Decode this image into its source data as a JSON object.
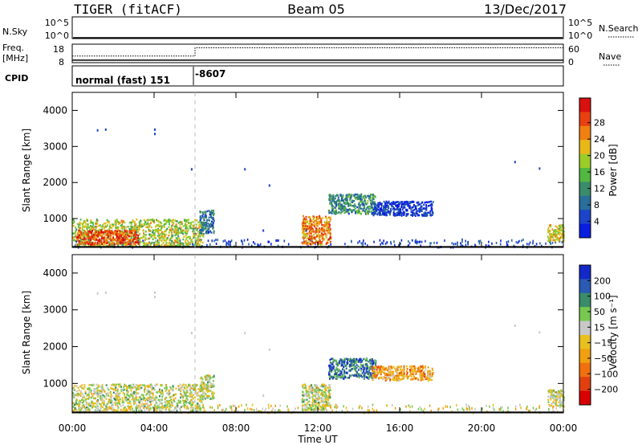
{
  "header": {
    "title": "TIGER (fitACF)",
    "beam": "Beam 05",
    "date": "13/Dec/2017"
  },
  "top_panels": {
    "nsky_label": "N.Sky",
    "nsky_ticks": [
      "10^5",
      "10^0"
    ],
    "nsearch_label": "N.Search",
    "nsearch_ticks": [
      "10^5",
      "10^0"
    ],
    "freq_label_1": "Freq.",
    "freq_label_2": "[MHz]",
    "freq_ticks": [
      "18",
      "8"
    ],
    "nave_label": "Nave",
    "nave_ticks": [
      "60",
      "0"
    ],
    "cpid_label": "CPID",
    "cpid_mode": "normal (fast) 151",
    "cpid_value": "-8607",
    "freq_series": {
      "x_hours": [
        0,
        6,
        6,
        24
      ],
      "freq_mhz": [
        12,
        12,
        16.5,
        16.5
      ]
    },
    "nave_series": {
      "x_hours": [
        0,
        24
      ],
      "nave": [
        8,
        8
      ]
    }
  },
  "chart_data": [
    {
      "type": "heatmap",
      "name": "power",
      "ylabel": "Slant Range [km]",
      "yticks": [
        1000,
        2000,
        3000,
        4000
      ],
      "ylim": [
        200,
        4500
      ],
      "xlim": [
        0,
        24
      ],
      "colorbar": {
        "label": "Power [dB]",
        "ticks": [
          "4",
          "8",
          "12",
          "16",
          "20",
          "24",
          "28"
        ],
        "colors": [
          "#0a1ee0",
          "#1c44c8",
          "#2a6e9c",
          "#3a8c6a",
          "#53b840",
          "#9ccc28",
          "#e8b818",
          "#f08010",
          "#e84010",
          "#d81010"
        ]
      },
      "echo_blobs": [
        {
          "x": [
            0,
            6.4
          ],
          "y": [
            250,
            1000
          ],
          "level": 0.55
        },
        {
          "x": [
            0.2,
            3.2
          ],
          "y": [
            300,
            700
          ],
          "level": 0.85
        },
        {
          "x": [
            6.2,
            6.9
          ],
          "y": [
            600,
            1250
          ],
          "level": 0.25
        },
        {
          "x": [
            11.2,
            12.6
          ],
          "y": [
            300,
            1100
          ],
          "level": 0.75
        },
        {
          "x": [
            12.5,
            14.8
          ],
          "y": [
            1150,
            1700
          ],
          "level": 0.35
        },
        {
          "x": [
            14.6,
            17.6
          ],
          "y": [
            1100,
            1500
          ],
          "level": 0.1
        },
        {
          "x": [
            23.2,
            24
          ],
          "y": [
            400,
            850
          ],
          "level": 0.6
        }
      ]
    },
    {
      "type": "heatmap",
      "name": "velocity",
      "ylabel": "Slant Range [km]",
      "xlabel": "Time UT",
      "yticks": [
        1000,
        2000,
        3000,
        4000
      ],
      "ylim": [
        200,
        4500
      ],
      "xlim": [
        0,
        24
      ],
      "xticks": [
        "00:00",
        "04:00",
        "08:00",
        "12:00",
        "16:00",
        "20:00",
        "00:00"
      ],
      "colorbar": {
        "label": "Velocity [m s⁻¹]",
        "ticks": [
          "200",
          "100",
          "50",
          "15",
          "−15",
          "−50",
          "−100",
          "−200"
        ],
        "colors": [
          "#1428c8",
          "#2a5ab4",
          "#3a8c6a",
          "#78c850",
          "#c8c8c8",
          "#e8c020",
          "#f0a010",
          "#f07010",
          "#e04010",
          "#d80000"
        ]
      },
      "echo_blobs": [
        {
          "x": [
            0,
            6.4
          ],
          "y": [
            250,
            1000
          ],
          "level": 0.45
        },
        {
          "x": [
            6.2,
            6.9
          ],
          "y": [
            600,
            1250
          ],
          "level": 0.45
        },
        {
          "x": [
            11.2,
            12.6
          ],
          "y": [
            300,
            1000
          ],
          "level": 0.45
        },
        {
          "x": [
            12.5,
            14.8
          ],
          "y": [
            1150,
            1700
          ],
          "level": 0.2
        },
        {
          "x": [
            14.6,
            17.6
          ],
          "y": [
            1100,
            1500
          ],
          "level": 0.65
        },
        {
          "x": [
            23.2,
            24
          ],
          "y": [
            400,
            850
          ],
          "level": 0.45
        }
      ]
    }
  ]
}
